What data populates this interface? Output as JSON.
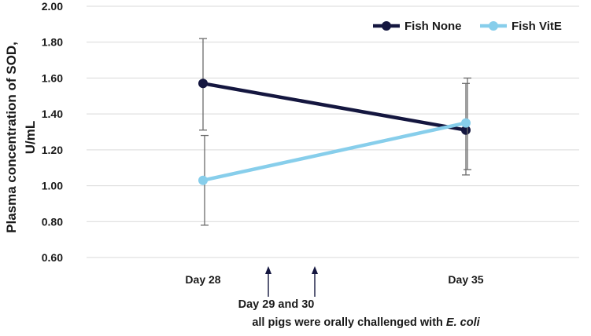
{
  "chart_data": {
    "type": "line",
    "title": "",
    "xlabel": "",
    "ylabel_lines": [
      "Plasma concentration of SOD,",
      "U/mL"
    ],
    "categories": [
      "Day 28",
      "Day 35"
    ],
    "ylim": [
      0.6,
      2.0
    ],
    "yticks": [
      "0.60",
      "0.80",
      "1.00",
      "1.20",
      "1.40",
      "1.60",
      "1.80",
      "2.00"
    ],
    "grid": true,
    "legend_position": "top-right",
    "series": [
      {
        "name": "Fish None",
        "color": "#14163f",
        "values": [
          1.57,
          1.31
        ],
        "error_low": [
          1.31,
          1.06
        ],
        "error_high": [
          1.82,
          1.57
        ]
      },
      {
        "name": "Fish VitE",
        "color": "#87ceeb",
        "values": [
          1.03,
          1.35
        ],
        "error_low": [
          0.78,
          1.09
        ],
        "error_high": [
          1.28,
          1.6
        ]
      }
    ],
    "annotation": {
      "line1": "Day 29 and 30",
      "line2_prefix": "all pigs were orally challenged with ",
      "line2_italic": "E. coli",
      "arrow_color": "#14163f"
    }
  }
}
